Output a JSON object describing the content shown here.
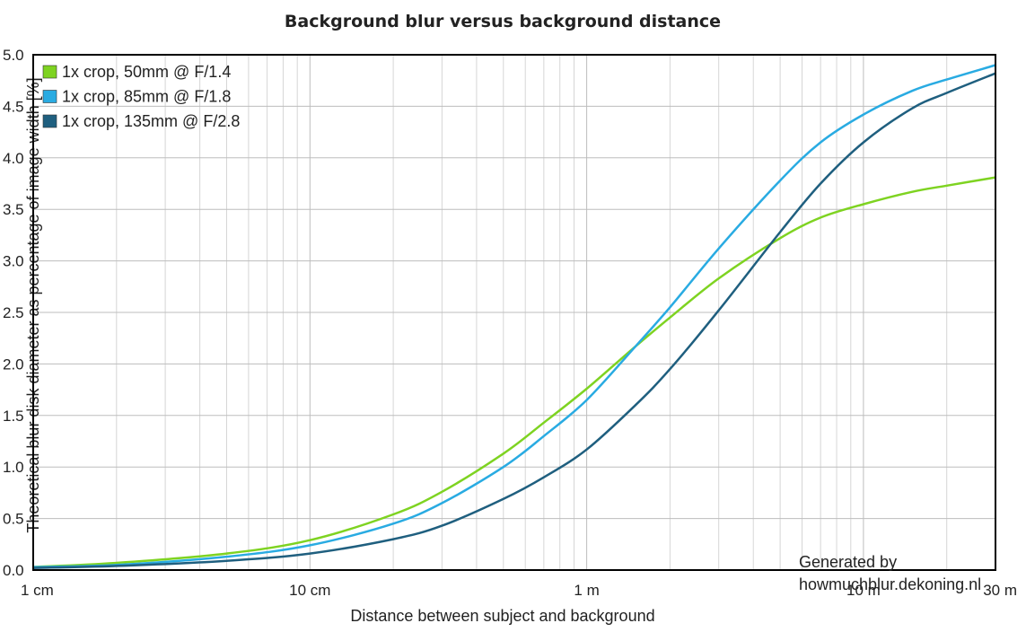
{
  "chart_data": {
    "type": "line",
    "title": "Background blur versus background distance",
    "xlabel": "Distance between subject and background",
    "ylabel": "Theoretical blur disk diameter as percentage of image width [%]",
    "x_scale": "log",
    "x_unit": "m",
    "xlim": [
      0.01,
      30
    ],
    "ylim": [
      0,
      5
    ],
    "x_ticks": [
      {
        "value": 0.01,
        "label": "1 cm"
      },
      {
        "value": 0.1,
        "label": "10 cm"
      },
      {
        "value": 1,
        "label": "1 m"
      },
      {
        "value": 10,
        "label": "10 m"
      },
      {
        "value": 30,
        "label": "30 m"
      }
    ],
    "y_ticks": [
      "0.0",
      "0.5",
      "1.0",
      "1.5",
      "2.0",
      "2.5",
      "3.0",
      "3.5",
      "4.0",
      "4.5",
      "5.0"
    ],
    "grid": true,
    "legend_position": "top-left",
    "x": [
      0.01,
      0.02,
      0.05,
      0.1,
      0.2,
      0.3,
      0.5,
      0.7,
      1,
      1.5,
      2,
      3,
      5,
      7,
      10,
      15,
      20,
      30
    ],
    "series": [
      {
        "name": "1x crop, 50mm @ F/1.4",
        "color": "#7ed321",
        "values": [
          0.03,
          0.07,
          0.16,
          0.29,
          0.54,
          0.76,
          1.13,
          1.43,
          1.76,
          2.17,
          2.45,
          2.83,
          3.22,
          3.42,
          3.55,
          3.67,
          3.73,
          3.81
        ]
      },
      {
        "name": "1x crop, 85mm @ F/1.8",
        "color": "#29abe2",
        "values": [
          0.03,
          0.05,
          0.13,
          0.24,
          0.45,
          0.65,
          1.0,
          1.3,
          1.65,
          2.17,
          2.55,
          3.12,
          3.78,
          4.15,
          4.42,
          4.65,
          4.76,
          4.9
        ]
      },
      {
        "name": "1x crop, 135mm @ F/2.8",
        "color": "#1f5f7f",
        "values": [
          0.02,
          0.04,
          0.09,
          0.16,
          0.3,
          0.43,
          0.69,
          0.9,
          1.17,
          1.6,
          1.95,
          2.52,
          3.28,
          3.75,
          4.15,
          4.48,
          4.63,
          4.82
        ]
      }
    ]
  },
  "credit": {
    "line1": "Generated by",
    "line2": "howmuchblur.dekoning.nl"
  }
}
